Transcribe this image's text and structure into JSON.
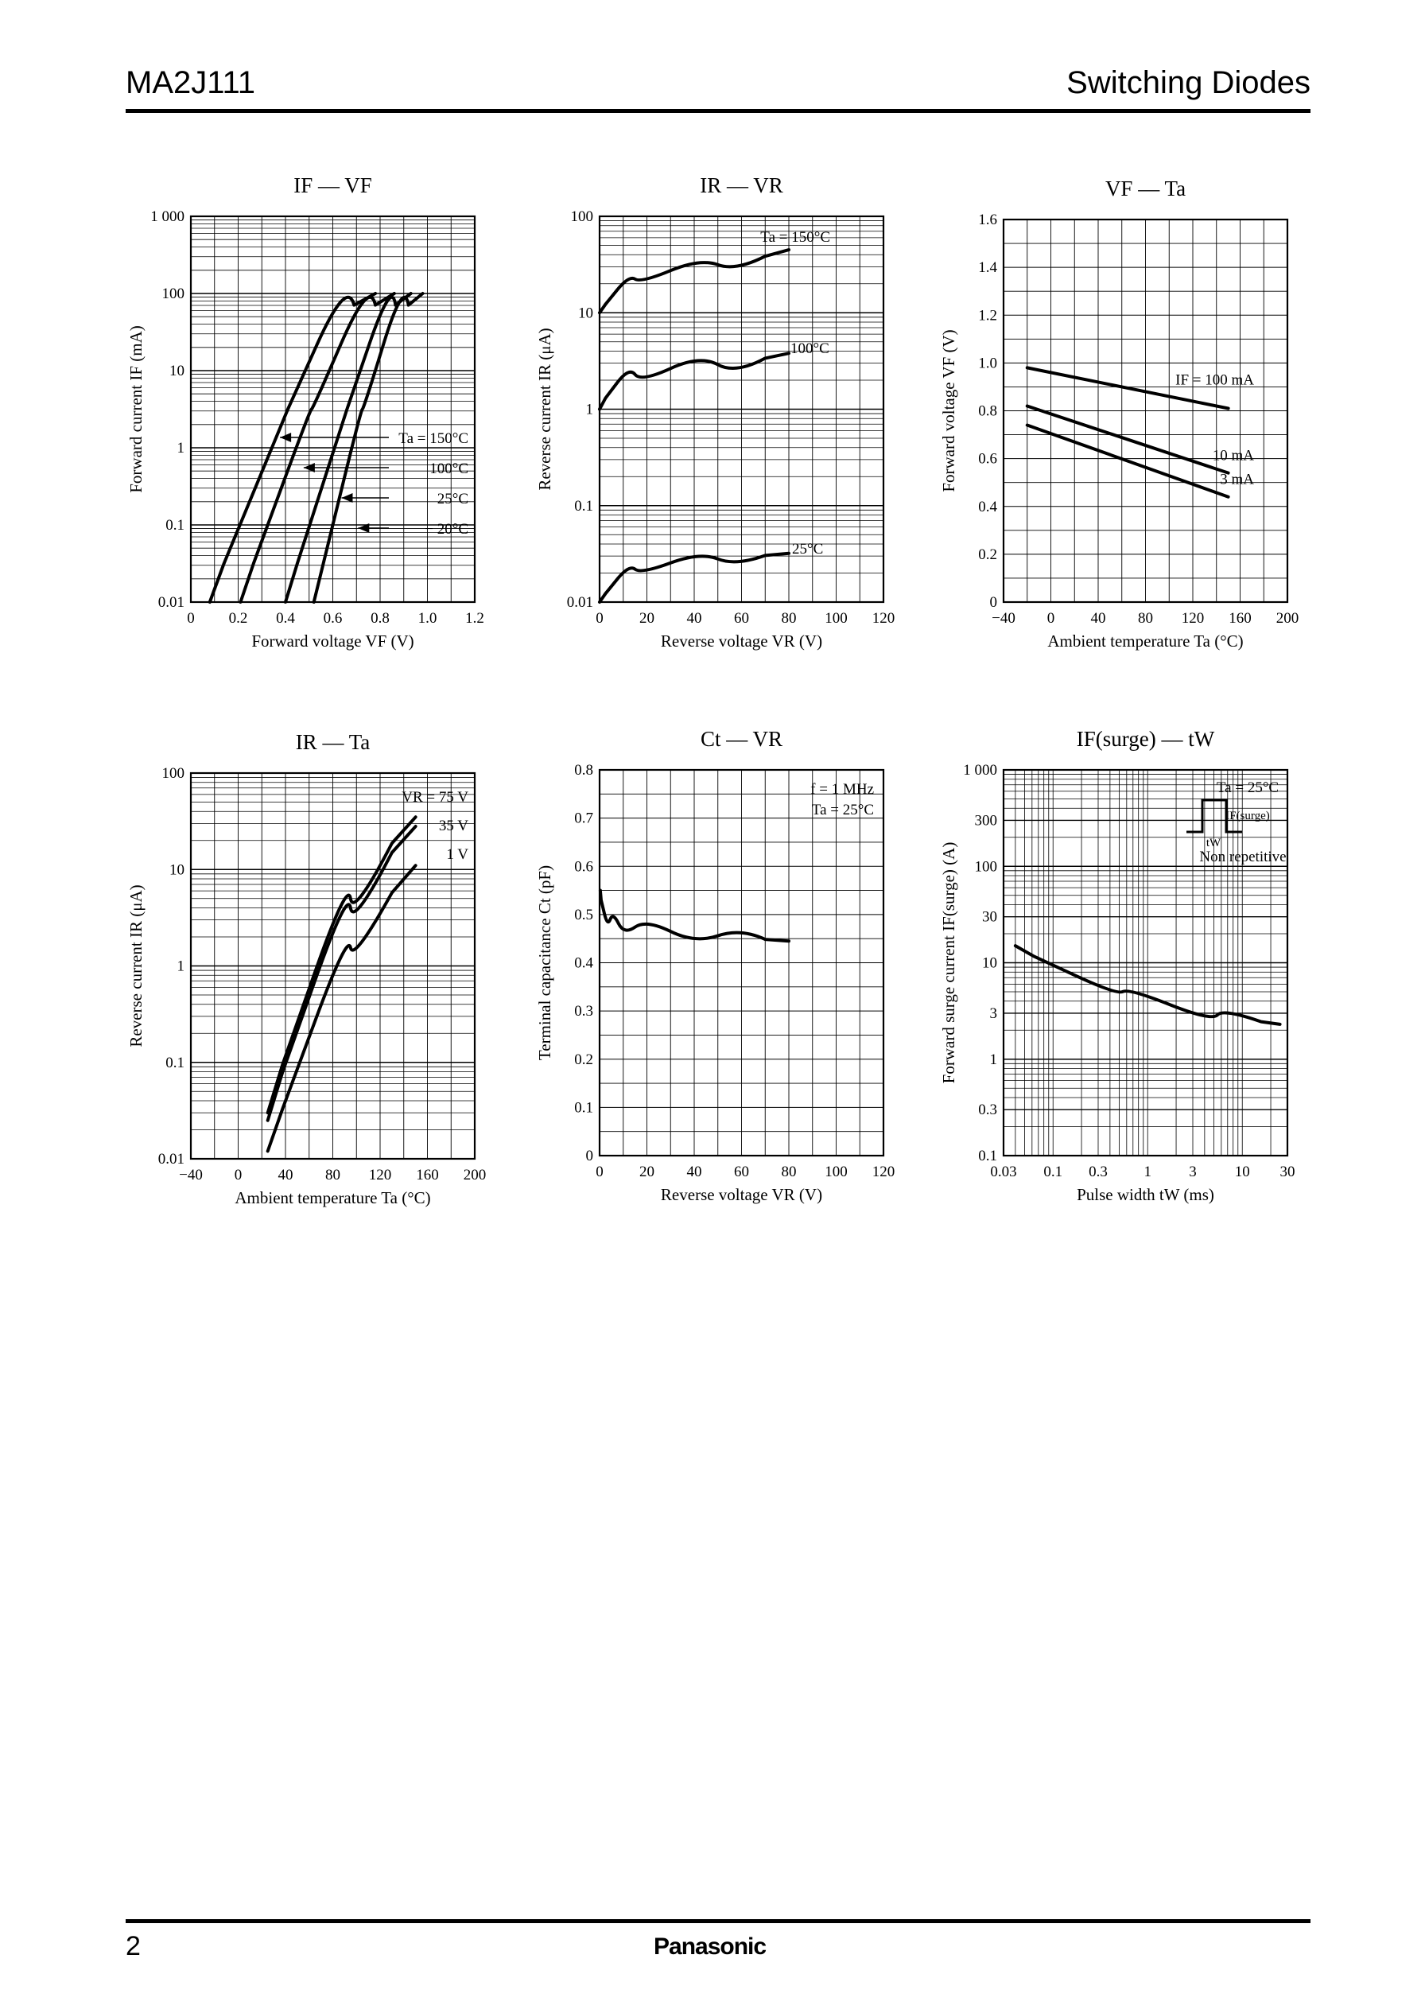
{
  "header": {
    "part_number": "MA2J111",
    "category": "Switching Diodes"
  },
  "footer": {
    "page_number": "2",
    "brand": "Panasonic"
  },
  "colors": {
    "ink": "#000000",
    "paper": "#ffffff"
  },
  "chart_data": [
    {
      "type": "line",
      "title": "IF — VF",
      "xlabel": "Forward voltage VF (V)",
      "ylabel": "Forward current IF (mA)",
      "xlim": [
        0,
        1.2
      ],
      "ylim": [
        0.01,
        1000
      ],
      "yscale": "log",
      "grid": true,
      "xticks": [
        "0",
        "0.2",
        "0.4",
        "0.6",
        "0.8",
        "1.0",
        "1.2"
      ],
      "yticks": [
        "0.01",
        "0.1",
        "1",
        "10",
        "100",
        "1 000"
      ],
      "series": [
        {
          "name": "Ta = 150°C",
          "points": [
            [
              0.08,
              0.01
            ],
            [
              0.2,
              0.1
            ],
            [
              0.35,
              1
            ],
            [
              0.47,
              10
            ],
            [
              0.6,
              50
            ],
            [
              0.78,
              100
            ]
          ]
        },
        {
          "name": "100°C",
          "points": [
            [
              0.21,
              0.01
            ],
            [
              0.32,
              0.1
            ],
            [
              0.45,
              1
            ],
            [
              0.57,
              10
            ],
            [
              0.7,
              50
            ],
            [
              0.86,
              100
            ]
          ]
        },
        {
          "name": "25°C",
          "points": [
            [
              0.4,
              0.01
            ],
            [
              0.5,
              0.1
            ],
            [
              0.61,
              1
            ],
            [
              0.71,
              10
            ],
            [
              0.8,
              50
            ],
            [
              0.93,
              100
            ]
          ]
        },
        {
          "name": "− 20°C",
          "points": [
            [
              0.52,
              0.01
            ],
            [
              0.6,
              0.1
            ],
            [
              0.68,
              1
            ],
            [
              0.77,
              10
            ],
            [
              0.86,
              50
            ],
            [
              0.98,
              100
            ]
          ]
        }
      ]
    },
    {
      "type": "line",
      "title": "IR — VR",
      "xlabel": "Reverse voltage VR (V)",
      "ylabel": "Reverse current IR (μA)",
      "xlim": [
        0,
        120
      ],
      "ylim": [
        0.01,
        100
      ],
      "yscale": "log",
      "grid": true,
      "xticks": [
        "0",
        "20",
        "40",
        "60",
        "80",
        "100",
        "120"
      ],
      "yticks": [
        "0.01",
        "0.1",
        "1",
        "10",
        "100"
      ],
      "series": [
        {
          "name": "Ta = 150°C",
          "points": [
            [
              0,
              10
            ],
            [
              5,
              15
            ],
            [
              10,
              20
            ],
            [
              20,
              25
            ],
            [
              40,
              30
            ],
            [
              60,
              33
            ],
            [
              80,
              45
            ]
          ]
        },
        {
          "name": "100°C",
          "points": [
            [
              0,
              1
            ],
            [
              5,
              1.7
            ],
            [
              10,
              2.1
            ],
            [
              20,
              2.5
            ],
            [
              40,
              2.8
            ],
            [
              60,
              3
            ],
            [
              80,
              3.8
            ]
          ]
        },
        {
          "name": "25°C",
          "points": [
            [
              0,
              0.01
            ],
            [
              5,
              0.015
            ],
            [
              10,
              0.02
            ],
            [
              20,
              0.024
            ],
            [
              40,
              0.027
            ],
            [
              60,
              0.029
            ],
            [
              80,
              0.032
            ]
          ]
        }
      ]
    },
    {
      "type": "line",
      "title": "VF — Ta",
      "xlabel": "Ambient temperature Ta (°C)",
      "ylabel": "Forward voltage VF (V)",
      "xlim": [
        -40,
        200
      ],
      "ylim": [
        0,
        1.6
      ],
      "grid": true,
      "xticks": [
        "−40",
        "0",
        "40",
        "80",
        "120",
        "160",
        "200"
      ],
      "yticks": [
        "0",
        "0.2",
        "0.4",
        "0.6",
        "0.8",
        "1.0",
        "1.2",
        "1.4",
        "1.6"
      ],
      "series": [
        {
          "name": "IF = 100 mA",
          "points": [
            [
              -20,
              0.98
            ],
            [
              150,
              0.81
            ]
          ]
        },
        {
          "name": "10 mA",
          "points": [
            [
              -20,
              0.82
            ],
            [
              150,
              0.54
            ]
          ]
        },
        {
          "name": "3 mA",
          "points": [
            [
              -20,
              0.74
            ],
            [
              150,
              0.44
            ]
          ]
        }
      ]
    },
    {
      "type": "line",
      "title": "IR — Ta",
      "xlabel": "Ambient temperature Ta (°C)",
      "ylabel": "Reverse current IR (μA)",
      "xlim": [
        -40,
        200
      ],
      "ylim": [
        0.01,
        100
      ],
      "yscale": "log",
      "grid": true,
      "xticks": [
        "−40",
        "0",
        "40",
        "80",
        "120",
        "160",
        "200"
      ],
      "yticks": [
        "0.01",
        "0.1",
        "1",
        "10",
        "100"
      ],
      "series": [
        {
          "name": "VR = 75 V",
          "points": [
            [
              25,
              0.03
            ],
            [
              50,
              0.3
            ],
            [
              80,
              2.5
            ],
            [
              110,
              10
            ],
            [
              150,
              35
            ]
          ]
        },
        {
          "name": "35 V",
          "points": [
            [
              25,
              0.025
            ],
            [
              50,
              0.25
            ],
            [
              80,
              2
            ],
            [
              110,
              8
            ],
            [
              150,
              28
            ]
          ]
        },
        {
          "name": "1 V",
          "points": [
            [
              25,
              0.012
            ],
            [
              50,
              0.09
            ],
            [
              80,
              0.8
            ],
            [
              110,
              3
            ],
            [
              150,
              11
            ]
          ]
        }
      ]
    },
    {
      "type": "line",
      "title": "Ct — VR",
      "xlabel": "Reverse voltage VR (V)",
      "ylabel": "Terminal capacitance Ct (pF)",
      "xlim": [
        0,
        120
      ],
      "ylim": [
        0,
        0.8
      ],
      "grid": true,
      "xticks": [
        "0",
        "20",
        "40",
        "60",
        "80",
        "100",
        "120"
      ],
      "yticks": [
        "0",
        "0.1",
        "0.2",
        "0.3",
        "0.4",
        "0.5",
        "0.6",
        "0.7",
        "0.8"
      ],
      "annotations": [
        "f = 1 MHz",
        "Ta = 25°C"
      ],
      "series": [
        {
          "points": [
            [
              0.3,
              0.55
            ],
            [
              1,
              0.51
            ],
            [
              3,
              0.495
            ],
            [
              6,
              0.485
            ],
            [
              10,
              0.478
            ],
            [
              20,
              0.47
            ],
            [
              40,
              0.46
            ],
            [
              60,
              0.452
            ],
            [
              80,
              0.445
            ]
          ]
        }
      ]
    },
    {
      "type": "line",
      "title": "IF(surge) — tW",
      "xlabel": "Pulse width tW (ms)",
      "ylabel": "Forward surge current IF(surge) (A)",
      "xlim": [
        0.03,
        30
      ],
      "ylim": [
        0.1,
        1000
      ],
      "xscale": "log",
      "yscale": "log",
      "grid": true,
      "xticks": [
        "0.03",
        "0.1",
        "0.3",
        "1",
        "3",
        "10",
        "30"
      ],
      "yticks": [
        "0.1",
        "0.3",
        "1",
        "3",
        "10",
        "30",
        "100",
        "300",
        "1 000"
      ],
      "annotations": [
        "Ta = 25°C",
        "IF(surge)",
        "tW",
        "Non repetitive"
      ],
      "series": [
        {
          "points": [
            [
              0.04,
              15
            ],
            [
              0.1,
              9
            ],
            [
              0.3,
              6
            ],
            [
              1,
              4.2
            ],
            [
              3,
              3.2
            ],
            [
              10,
              2.6
            ],
            [
              25,
              2.3
            ]
          ]
        }
      ]
    }
  ]
}
